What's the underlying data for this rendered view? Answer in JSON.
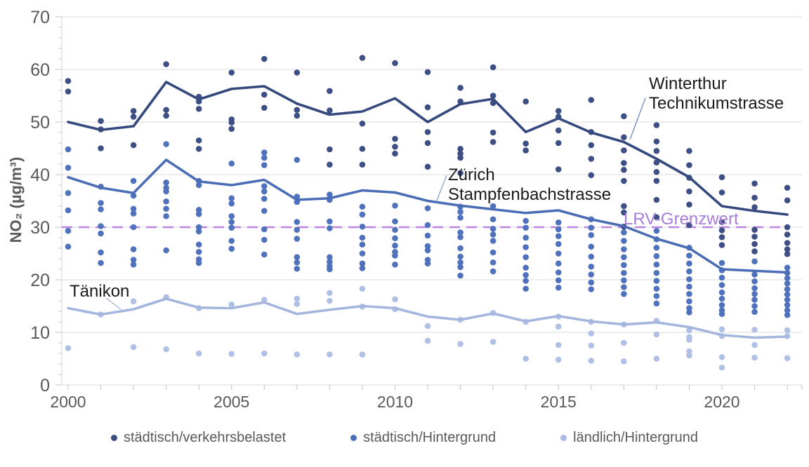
{
  "page": {
    "background": "#FFFFFF"
  },
  "legend": {
    "items": [
      {
        "label": "städtisch/verkehrsbelastet",
        "color": "#3C4E81"
      },
      {
        "label": "städtisch/Hintergrund",
        "color": "#4C70B8"
      },
      {
        "label": "ländlich/Hintergrund",
        "color": "#A8B9E2"
      }
    ]
  },
  "chart_data": {
    "type": "scatter",
    "title": "",
    "ylabel": "NO₂ (µg/m³)",
    "xlabel": "",
    "ylim": [
      0,
      70
    ],
    "xlim": [
      2000,
      2022
    ],
    "grid": "horizontal",
    "legend_position": "bottom",
    "y_major_ticks": [
      0,
      10,
      20,
      30,
      40,
      50,
      60,
      70
    ],
    "y_minor_step": 2,
    "x_tick_years": [
      2000,
      2005,
      2010,
      2015,
      2020
    ],
    "years": [
      2000,
      2001,
      2002,
      2003,
      2004,
      2005,
      2006,
      2007,
      2008,
      2009,
      2010,
      2011,
      2012,
      2013,
      2014,
      2015,
      2016,
      2017,
      2018,
      2019,
      2020,
      2021,
      2022
    ],
    "reference_line": {
      "label": "LRV-Grenzwert",
      "value": 30,
      "color": "#B886DC",
      "text_color": "#A87CD9",
      "style": "dashed"
    },
    "series": [
      {
        "id": "staedtisch-verkehrsbelastet",
        "legend_label": "städtisch/verkehrsbelastet",
        "dot_color": "#3D4F84",
        "line_color": "#35497E",
        "line_label": "Winterthur Technikumstrasse",
        "line_values": [
          50.0,
          48.5,
          49.2,
          57.6,
          54.3,
          56.3,
          56.8,
          53.5,
          51.4,
          52.0,
          54.5,
          50.0,
          53.4,
          54.4,
          48.1,
          50.7,
          48.0,
          46.2,
          43.0,
          39.5,
          34.0,
          33.1,
          32.4
        ],
        "dots": [
          [
            57.8,
            55.8
          ],
          [
            50.2,
            48.6,
            45.0
          ],
          [
            52.1,
            51.0,
            45.6
          ],
          [
            61.0,
            52.3,
            51.2
          ],
          [
            54.8,
            53.9,
            52.5,
            46.5,
            44.9
          ],
          [
            59.4,
            50.5,
            49.9,
            48.7
          ],
          [
            62.0,
            55.2,
            52.7
          ],
          [
            59.4,
            52.3,
            51.2
          ],
          [
            55.9,
            52.2,
            44.8,
            41.9
          ],
          [
            62.2,
            49.7,
            44.9,
            41.9
          ],
          [
            61.2,
            46.8,
            45.3,
            44.0
          ],
          [
            59.5,
            52.8,
            48.1,
            46.0,
            41.5
          ],
          [
            56.5,
            53.9,
            44.9,
            44.0,
            43.2,
            40.3
          ],
          [
            60.4,
            55.0,
            53.6,
            48.0,
            46.2
          ],
          [
            53.9,
            45.9,
            44.6
          ],
          [
            52.1,
            51.0,
            48.4,
            46.0,
            41.0
          ],
          [
            54.2,
            48.1,
            45.6,
            43.0,
            39.9
          ],
          [
            51.1,
            47.1,
            44.6,
            42.2,
            40.9,
            38.8,
            34.0,
            32.8,
            30.1
          ],
          [
            49.4,
            46.3,
            44.5,
            42.3,
            40.5,
            38.8,
            35.2,
            31.9
          ],
          [
            44.5,
            41.8,
            39.4,
            36.8,
            34.3,
            30.4
          ],
          [
            39.5,
            36.6,
            31.0,
            29.4,
            28.1,
            26.6
          ],
          [
            38.3,
            35.6,
            33.8,
            29.5,
            28.2,
            26.8,
            25.4
          ],
          [
            37.5,
            35.1,
            30.0,
            28.6,
            27.0,
            25.8,
            24.9
          ]
        ]
      },
      {
        "id": "staedtisch-hintergrund",
        "legend_label": "städtisch/Hintergrund",
        "dot_color": "#5072BC",
        "line_color": "#4A6DB6",
        "line_label": "Zürich Stampfenbachstrasse",
        "line_values": [
          39.5,
          37.5,
          36.5,
          42.8,
          38.7,
          38.0,
          39.0,
          35.2,
          35.5,
          37.0,
          36.6,
          35.0,
          34.1,
          33.4,
          32.7,
          33.2,
          31.5,
          30.2,
          27.8,
          26.0,
          22.0,
          21.7,
          21.4
        ],
        "dots": [
          [
            44.8,
            41.3,
            36.5,
            33.2,
            29.3,
            26.3
          ],
          [
            37.7,
            34.6,
            33.4,
            30.2,
            28.8,
            25.2,
            23.2
          ],
          [
            38.8,
            36.0,
            33.5,
            32.6,
            30.0,
            25.8,
            23.8,
            22.9
          ],
          [
            45.8,
            38.5,
            37.5,
            36.8,
            34.9,
            33.5,
            32.1,
            25.6
          ],
          [
            38.8,
            38.0,
            33.3,
            32.5,
            30.0,
            29.2,
            26.7,
            25.3,
            23.9,
            23.2
          ],
          [
            42.1,
            35.5,
            34.5,
            32.1,
            31.0,
            29.9,
            27.4,
            25.9
          ],
          [
            44.2,
            43.2,
            41.8,
            37.8,
            36.8,
            35.4,
            33.1,
            29.6,
            27.6,
            24.8
          ],
          [
            42.8,
            35.8,
            34.8,
            31.0,
            29.5,
            27.8,
            24.3,
            23.3,
            22.1
          ],
          [
            36.2,
            35.2,
            31.1,
            29.8,
            24.3,
            23.4,
            22.6,
            22.0
          ],
          [
            33.9,
            32.4,
            30.1,
            28.0,
            26.7,
            25.0,
            23.1,
            22.2
          ],
          [
            34.1,
            31.1,
            29.5,
            27.9,
            26.5,
            25.3,
            24.6,
            22.9
          ],
          [
            33.6,
            30.4,
            28.4,
            26.4,
            25.6,
            23.8,
            23.1
          ],
          [
            33.9,
            32.9,
            31.8,
            29.0,
            28.1,
            26.0,
            24.4,
            23.3,
            22.4,
            20.8
          ],
          [
            34.0,
            31.5,
            29.7,
            28.6,
            27.4,
            25.2,
            23.3,
            21.6
          ],
          [
            31.2,
            29.9,
            28.0,
            26.2,
            24.3,
            22.3,
            20.9,
            19.8,
            18.3
          ],
          [
            30.9,
            29.6,
            28.3,
            26.8,
            25.0,
            23.1,
            21.4,
            19.9,
            18.5
          ],
          [
            31.5,
            29.9,
            28.5,
            26.3,
            24.4,
            22.5,
            21.0,
            19.5,
            18.2
          ],
          [
            29.0,
            27.4,
            25.8,
            24.3,
            22.8,
            21.3,
            19.9,
            18.6,
            17.3
          ],
          [
            29.3,
            27.7,
            26.1,
            24.5,
            22.9,
            21.3,
            19.8,
            18.3,
            16.9,
            15.5
          ],
          [
            26.1,
            24.6,
            23.1,
            21.6,
            20.1,
            18.7,
            17.3,
            15.9,
            14.6,
            13.8
          ],
          [
            23.2,
            21.8,
            20.4,
            19.0,
            17.6,
            16.4,
            15.2,
            14.2,
            13.5
          ],
          [
            23.5,
            21.0,
            19.7,
            18.4,
            17.3,
            16.2,
            15.0,
            13.9
          ],
          [
            22.3,
            21.3,
            20.3,
            19.3,
            18.2,
            17.2,
            16.2,
            15.2,
            14.2,
            13.3
          ]
        ]
      },
      {
        "id": "laendlich-hintergrund",
        "legend_label": "ländlich/Hintergrund",
        "dot_color": "#AFC0E4",
        "line_color": "#A4B6DD",
        "line_label": "Tänikon",
        "line_values": [
          14.6,
          13.4,
          14.4,
          16.4,
          14.7,
          14.6,
          15.7,
          13.5,
          14.3,
          15.0,
          14.6,
          13.0,
          12.4,
          13.6,
          12.1,
          13.1,
          12.1,
          11.5,
          11.9,
          11.0,
          9.5,
          9.0,
          9.2
        ],
        "dots": [
          [
            7.0
          ],
          [
            13.4
          ],
          [
            15.9,
            7.2
          ],
          [
            16.7,
            6.8
          ],
          [
            14.6,
            6.0
          ],
          [
            15.3,
            5.9
          ],
          [
            16.2,
            6.0
          ],
          [
            16.4,
            15.4,
            5.8
          ],
          [
            17.5,
            16.0,
            5.8
          ],
          [
            18.3,
            14.9,
            5.8
          ],
          [
            16.3,
            14.4
          ],
          [
            11.2,
            8.4
          ],
          [
            12.4,
            7.8
          ],
          [
            13.7,
            8.2
          ],
          [
            12.0,
            5.0
          ],
          [
            13.0,
            11.1,
            7.6,
            4.8
          ],
          [
            12.0,
            9.8,
            7.5,
            4.6
          ],
          [
            11.5,
            8.0,
            4.5
          ],
          [
            12.2,
            9.6,
            5.0
          ],
          [
            10.4,
            9.1,
            8.6,
            6.4,
            5.6
          ],
          [
            10.6,
            9.3,
            5.3,
            3.3
          ],
          [
            10.5,
            7.6,
            5.2
          ],
          [
            10.4,
            9.3,
            5.1
          ]
        ]
      }
    ],
    "annotations": [
      {
        "id": "winterthur-technikumstrasse",
        "line1": "Winterthur",
        "line2": "Technikumstrasse",
        "color": "#1A1A1A"
      },
      {
        "id": "zuerich-stampfenbachstrasse",
        "line1": "Zürich",
        "line2": "Stampfenbachstrasse",
        "color": "#1A1A1A"
      },
      {
        "id": "taenikon",
        "line1": "Tänikon",
        "line2": "",
        "color": "#1A1A1A"
      }
    ],
    "axis_colors": {
      "tick_label": "#595959",
      "grid": "#DBDBDB",
      "axis_line": "#D9D9D9",
      "tick": "#BFBFBF"
    }
  }
}
